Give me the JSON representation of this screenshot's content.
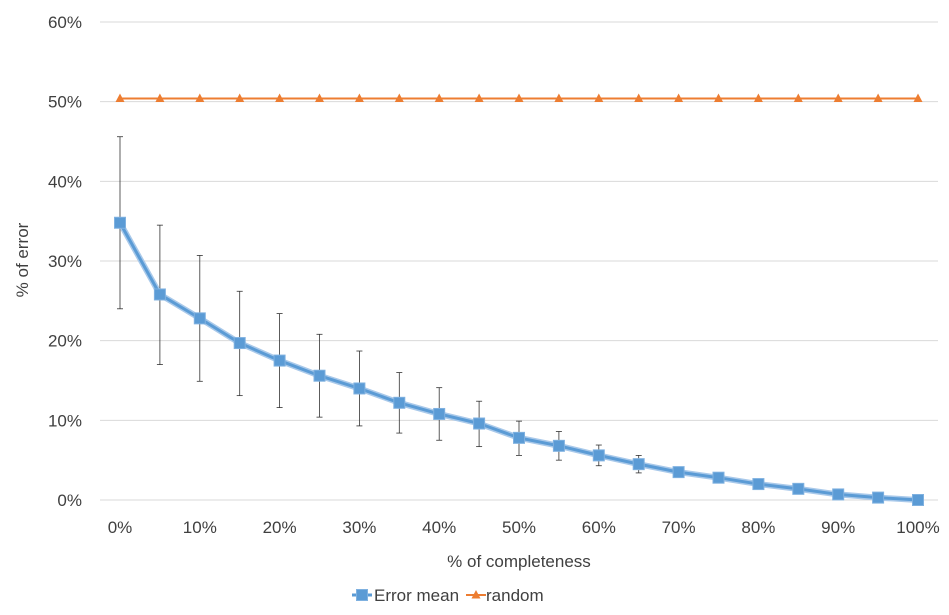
{
  "chart_data": {
    "type": "line",
    "title": "",
    "xlabel": "% of completeness",
    "ylabel": "% of error",
    "x": [
      0,
      5,
      10,
      15,
      20,
      25,
      30,
      35,
      40,
      45,
      50,
      55,
      60,
      65,
      70,
      75,
      80,
      85,
      90,
      95,
      100
    ],
    "x_tick_labels": [
      "0%",
      "10%",
      "20%",
      "30%",
      "40%",
      "50%",
      "60%",
      "70%",
      "80%",
      "90%",
      "100%"
    ],
    "x_tick_values": [
      0,
      10,
      20,
      30,
      40,
      50,
      60,
      70,
      80,
      90,
      100
    ],
    "y_tick_labels": [
      "0%",
      "10%",
      "20%",
      "30%",
      "40%",
      "50%",
      "60%"
    ],
    "y_tick_values": [
      0,
      10,
      20,
      30,
      40,
      50,
      60
    ],
    "ylim": [
      0,
      60
    ],
    "xlim": [
      0,
      100
    ],
    "grid": "horizontal",
    "legend_position": "bottom",
    "series": [
      {
        "name": "Error mean",
        "color": "#5B9BD5",
        "marker": "square",
        "values": [
          34.8,
          25.8,
          22.8,
          19.7,
          17.5,
          15.6,
          14.0,
          12.2,
          10.8,
          9.6,
          7.8,
          6.8,
          5.6,
          4.5,
          3.5,
          2.8,
          2.0,
          1.4,
          0.7,
          0.3,
          0.0
        ],
        "error_upper": [
          45.6,
          34.5,
          30.7,
          26.2,
          23.4,
          20.8,
          18.7,
          16.0,
          14.1,
          12.4,
          9.9,
          8.6,
          6.9,
          5.6,
          4.0,
          3.1,
          2.2,
          1.6,
          0.9,
          0.4,
          0.1
        ],
        "error_lower": [
          24.0,
          17.0,
          14.9,
          13.1,
          11.6,
          10.4,
          9.3,
          8.4,
          7.5,
          6.7,
          5.6,
          5.0,
          4.3,
          3.4,
          3.0,
          2.5,
          1.8,
          1.2,
          0.5,
          0.2,
          0.0
        ]
      },
      {
        "name": "random",
        "color": "#ED7D31",
        "marker": "triangle",
        "values": [
          50.4,
          50.4,
          50.4,
          50.4,
          50.4,
          50.4,
          50.4,
          50.4,
          50.4,
          50.4,
          50.4,
          50.4,
          50.4,
          50.4,
          50.4,
          50.4,
          50.4,
          50.4,
          50.4,
          50.4,
          50.4
        ]
      }
    ]
  }
}
